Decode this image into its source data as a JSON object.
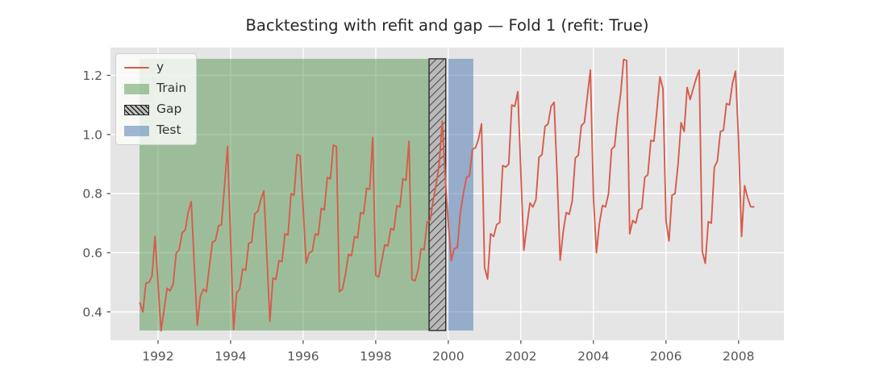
{
  "title": "Backtesting with refit and gap — Fold 1 (refit: True)",
  "legend": {
    "position": "upper left",
    "items": [
      {
        "label": "y",
        "type": "line",
        "color": "#d65c4c"
      },
      {
        "label": "Train",
        "type": "patch",
        "color": "rgba(85,150,80,0.5)"
      },
      {
        "label": "Gap",
        "type": "hatch",
        "color": "rgba(150,150,150,0.55)",
        "hatch_color": "#222222",
        "border": "#2b2b2b"
      },
      {
        "label": "Test",
        "type": "patch",
        "color": "rgba(70,116,175,0.5)"
      }
    ]
  },
  "chart_data": {
    "type": "line",
    "title": "Backtesting with refit and gap — Fold 1 (refit: True)",
    "xlabel": "",
    "ylabel": "",
    "grid": true,
    "background": "#e5e5e5",
    "grid_color": "#ffffff",
    "tick_color": "#555555",
    "xlim": [
      1990.69,
      2009.25
    ],
    "ylim": [
      0.304,
      1.294
    ],
    "x_ticks": [
      1992,
      1994,
      1996,
      1998,
      2000,
      2002,
      2004,
      2006,
      2008
    ],
    "x_tick_labels": [
      "1992",
      "1994",
      "1996",
      "1998",
      "2000",
      "2002",
      "2004",
      "2006",
      "2008"
    ],
    "y_ticks": [
      0.4,
      0.6,
      0.8,
      1.0,
      1.2
    ],
    "y_tick_labels": [
      "0.4",
      "0.6",
      "0.8",
      "1.0",
      "1.2"
    ],
    "regions": [
      {
        "name": "Train",
        "dates": "1991-07 to 1999-06",
        "x_start": 1991.49,
        "x_end": 1999.47,
        "y_min": 0.337,
        "y_max": 1.256,
        "fill": "rgba(85,150,80,0.5)",
        "hatch": null
      },
      {
        "name": "Gap",
        "dates": "1999-07 to 1999-12",
        "x_start": 1999.47,
        "x_end": 1999.93,
        "y_min": 0.337,
        "y_max": 1.256,
        "fill": "rgba(150,150,150,0.55)",
        "hatch": "///",
        "border": "#2b2b2b"
      },
      {
        "name": "Test",
        "dates": "2000-01 to 2000-08",
        "x_start": 2000.0,
        "x_end": 2000.69,
        "y_min": 0.337,
        "y_max": 1.256,
        "fill": "rgba(70,116,175,0.5)",
        "hatch": null
      }
    ],
    "series": [
      {
        "name": "y",
        "color": "#d65c4c",
        "line_width": 1.9,
        "freq": "monthly",
        "start": "1991-07",
        "end": "2008-06",
        "values": [
          0.43,
          0.4,
          0.497,
          0.5,
          0.52,
          0.655,
          0.495,
          0.336,
          0.406,
          0.48,
          0.471,
          0.493,
          0.598,
          0.611,
          0.668,
          0.677,
          0.738,
          0.773,
          0.555,
          0.355,
          0.452,
          0.477,
          0.468,
          0.555,
          0.636,
          0.641,
          0.691,
          0.695,
          0.827,
          0.959,
          0.645,
          0.34,
          0.464,
          0.477,
          0.545,
          0.541,
          0.632,
          0.636,
          0.732,
          0.74,
          0.78,
          0.809,
          0.59,
          0.368,
          0.514,
          0.51,
          0.573,
          0.57,
          0.664,
          0.66,
          0.8,
          0.795,
          0.932,
          0.928,
          0.75,
          0.565,
          0.6,
          0.605,
          0.664,
          0.66,
          0.75,
          0.745,
          0.855,
          0.85,
          0.964,
          0.96,
          0.468,
          0.477,
          0.527,
          0.595,
          0.59,
          0.655,
          0.65,
          0.736,
          0.732,
          0.818,
          0.814,
          0.99,
          0.523,
          0.518,
          0.573,
          0.627,
          0.623,
          0.682,
          0.677,
          0.759,
          0.755,
          0.85,
          0.845,
          0.977,
          0.509,
          0.505,
          0.541,
          0.614,
          0.61,
          0.705,
          0.709,
          0.777,
          0.832,
          0.9,
          1.045,
          0.855,
          0.7,
          0.573,
          0.614,
          0.618,
          0.736,
          0.8,
          0.855,
          0.86,
          0.95,
          0.955,
          0.985,
          1.036,
          0.55,
          0.511,
          0.664,
          0.655,
          0.695,
          0.702,
          0.895,
          0.89,
          0.9,
          1.1,
          1.095,
          1.145,
          0.87,
          0.609,
          0.691,
          0.768,
          0.755,
          0.78,
          0.923,
          0.932,
          1.027,
          1.036,
          1.095,
          1.109,
          0.86,
          0.575,
          0.67,
          0.736,
          0.73,
          0.775,
          0.92,
          0.93,
          1.03,
          1.04,
          1.13,
          1.218,
          0.79,
          0.6,
          0.7,
          0.76,
          0.755,
          0.8,
          0.95,
          0.96,
          1.06,
          1.136,
          1.254,
          1.25,
          0.664,
          0.709,
          0.7,
          0.745,
          0.75,
          0.855,
          0.864,
          0.98,
          0.977,
          1.082,
          1.195,
          1.155,
          0.709,
          0.64,
          0.795,
          0.8,
          0.9,
          1.04,
          1.01,
          1.159,
          1.118,
          1.155,
          1.19,
          1.218,
          0.605,
          0.564,
          0.705,
          0.7,
          0.89,
          0.91,
          1.01,
          1.014,
          1.105,
          1.1,
          1.173,
          1.214,
          0.98,
          0.655,
          0.827,
          0.786,
          0.756,
          0.755
        ]
      }
    ]
  }
}
